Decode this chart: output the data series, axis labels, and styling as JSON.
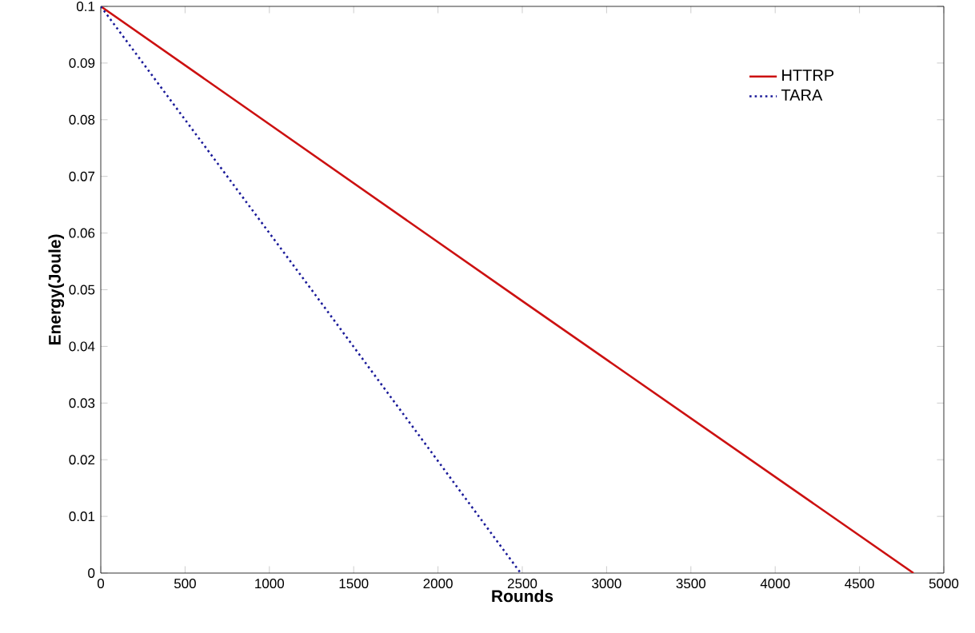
{
  "chart_data": {
    "type": "line",
    "xlabel": "Rounds",
    "ylabel": "Energy(Joule)",
    "xlim": [
      0,
      5000
    ],
    "xticks": [
      0,
      500,
      1000,
      1500,
      2000,
      2500,
      3000,
      3500,
      4000,
      4500,
      5000
    ],
    "ylim": [
      0,
      0.1
    ],
    "yticks": [
      0,
      0.01,
      0.02,
      0.03,
      0.04,
      0.05,
      0.06,
      0.07,
      0.08,
      0.09,
      0.1
    ],
    "grid": false,
    "legend": "top right",
    "marker": "none",
    "series": [
      {
        "name": "HTTRP",
        "color": "#cc1111",
        "line_style": "solid",
        "x": [
          0,
          2500,
          4820
        ],
        "values": [
          0.1,
          0.048,
          0
        ]
      },
      {
        "name": "TARA",
        "color": "#1a1a99",
        "line_style": "dotted",
        "x": [
          0,
          1250,
          2490
        ],
        "values": [
          0.1,
          0.05,
          0
        ]
      }
    ]
  }
}
